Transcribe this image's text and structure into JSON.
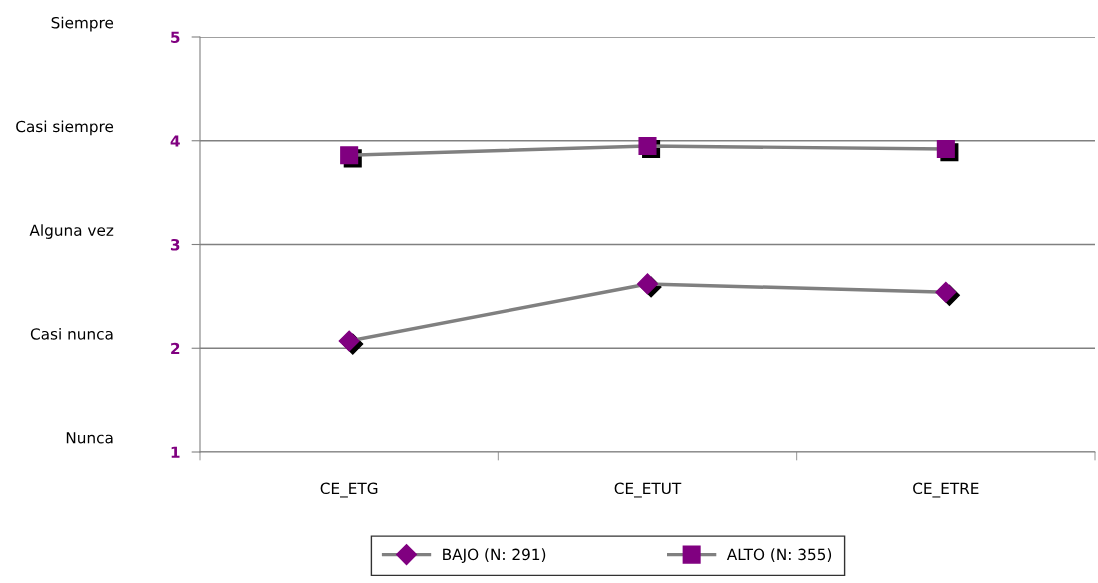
{
  "chart_data": {
    "type": "line",
    "categories": [
      "CE_ETG",
      "CE_ETUT",
      "CE_ETRE"
    ],
    "series": [
      {
        "name": "BAJO (N: 291)",
        "color": "#800080",
        "marker": "diamond",
        "values": [
          2.07,
          2.62,
          2.54
        ]
      },
      {
        "name": "ALTO (N: 355)",
        "color": "#800080",
        "marker": "square",
        "values": [
          3.86,
          3.95,
          3.92
        ]
      }
    ],
    "ylim": [
      1,
      5
    ],
    "yticks": [
      1,
      2,
      3,
      4,
      5
    ],
    "annotations": [
      "Nunca",
      "Casi nunca",
      "Alguna vez",
      "Casi siempre",
      "Siempre"
    ],
    "grid": "y",
    "legend": "bottom",
    "line_style": "solid"
  }
}
